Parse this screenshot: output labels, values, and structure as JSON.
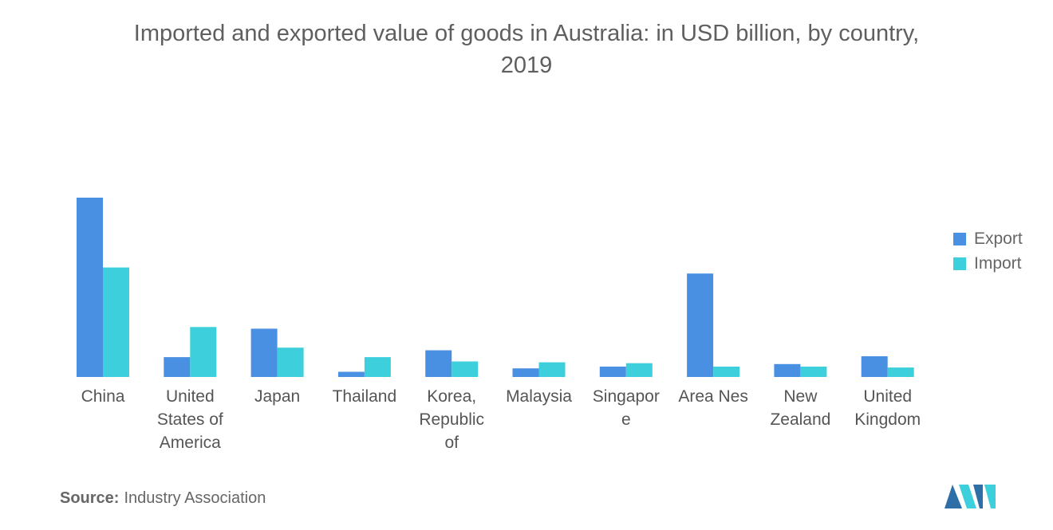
{
  "title_line1": "Imported and exported value of goods in Australia: in USD billion, by country,",
  "title_line2": "2019",
  "source": {
    "label": "Source:",
    "text": "Industry Association"
  },
  "colors": {
    "export": "#4a90e2",
    "import": "#3ecfdc",
    "logo_left": "#2e6fa7",
    "logo_right": "#3ecfdc"
  },
  "chart_data": {
    "type": "bar",
    "title": "Imported and exported value of goods in Australia: in USD billion, by country, 2019",
    "xlabel": "",
    "ylabel": "",
    "ylim": [
      0,
      104
    ],
    "grid": false,
    "legend_position": "right",
    "categories": [
      [
        "China"
      ],
      [
        "United",
        "States of",
        "America"
      ],
      [
        "Japan"
      ],
      [
        "Thailand"
      ],
      [
        "Korea,",
        "Republic",
        "of"
      ],
      [
        "Malaysia"
      ],
      [
        "Singapor",
        "e"
      ],
      [
        "Area Nes"
      ],
      [
        "New",
        "Zealand"
      ],
      [
        "United",
        "Kingdom"
      ]
    ],
    "series": [
      {
        "name": "Export",
        "values": [
          104,
          11.5,
          28,
          3,
          15.5,
          5,
          6,
          60,
          7.5,
          12
        ]
      },
      {
        "name": "Import",
        "values": [
          63.5,
          29,
          17,
          11.5,
          9,
          8.5,
          8,
          6,
          6,
          5.5
        ]
      }
    ]
  }
}
